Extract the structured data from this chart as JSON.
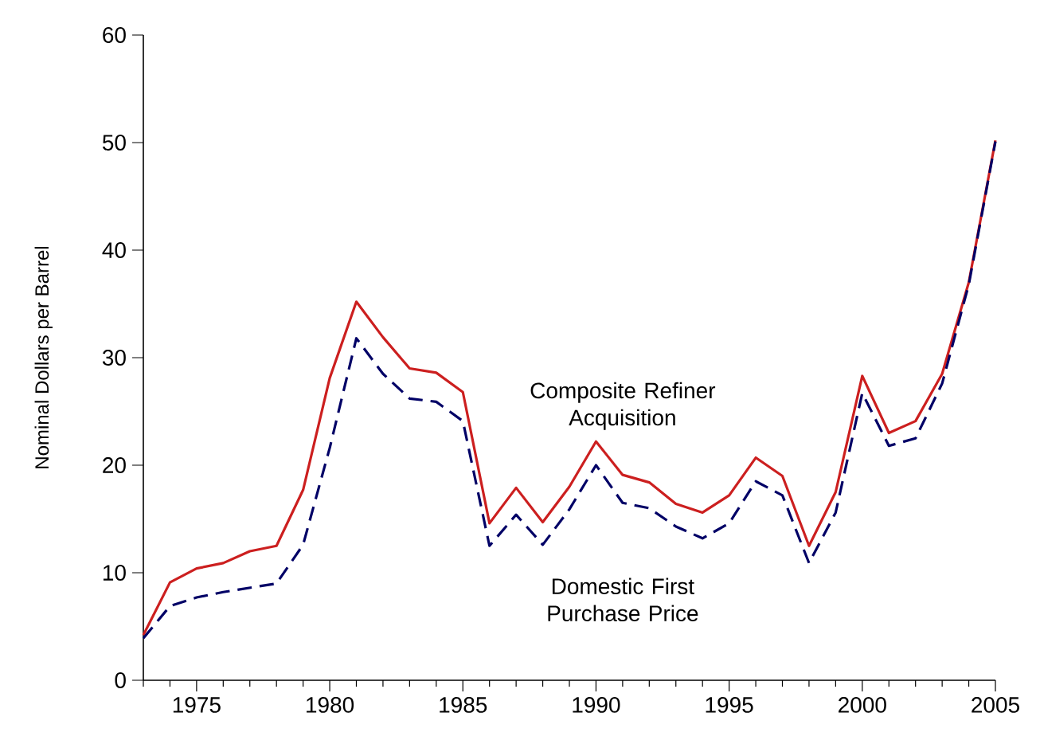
{
  "chart_data": {
    "type": "line",
    "ylabel": "Nominal Dollars per Barrel",
    "x": [
      1973,
      1974,
      1975,
      1976,
      1977,
      1978,
      1979,
      1980,
      1981,
      1982,
      1983,
      1984,
      1985,
      1986,
      1987,
      1988,
      1989,
      1990,
      1991,
      1992,
      1993,
      1994,
      1995,
      1996,
      1997,
      1998,
      1999,
      2000,
      2001,
      2002,
      2003,
      2004,
      2005
    ],
    "series": [
      {
        "name": "Composite Refiner Acquisition",
        "color": "#cc1f1f",
        "line_style": "solid",
        "values": [
          4.2,
          9.1,
          10.4,
          10.9,
          12.0,
          12.5,
          17.7,
          28.1,
          35.2,
          31.9,
          29.0,
          28.6,
          26.8,
          14.6,
          17.9,
          14.7,
          18.0,
          22.2,
          19.1,
          18.4,
          16.4,
          15.6,
          17.2,
          20.7,
          19.0,
          12.5,
          17.5,
          28.3,
          23.0,
          24.1,
          28.5,
          37.0,
          50.2
        ]
      },
      {
        "name": "Domestic First Purchase Price",
        "color": "#000066",
        "line_style": "dashed",
        "values": [
          3.9,
          6.9,
          7.7,
          8.2,
          8.6,
          9.0,
          12.6,
          21.6,
          31.8,
          28.5,
          26.2,
          25.9,
          24.1,
          12.5,
          15.4,
          12.6,
          15.9,
          20.0,
          16.5,
          16.0,
          14.3,
          13.2,
          14.6,
          18.5,
          17.2,
          10.9,
          15.6,
          26.7,
          21.8,
          22.5,
          27.6,
          36.8,
          50.1
        ]
      }
    ],
    "xlim": [
      1973,
      2005
    ],
    "ylim": [
      0,
      60
    ],
    "xticks": [
      {
        "value": 1973,
        "label": null
      },
      {
        "value": 1974,
        "label": null
      },
      1975,
      {
        "value": 1976,
        "label": null
      },
      {
        "value": 1977,
        "label": null
      },
      {
        "value": 1978,
        "label": null
      },
      {
        "value": 1979,
        "label": null
      },
      1980,
      {
        "value": 1981,
        "label": null
      },
      {
        "value": 1982,
        "label": null
      },
      {
        "value": 1983,
        "label": null
      },
      {
        "value": 1984,
        "label": null
      },
      1985,
      {
        "value": 1986,
        "label": null
      },
      {
        "value": 1987,
        "label": null
      },
      {
        "value": 1988,
        "label": null
      },
      {
        "value": 1989,
        "label": null
      },
      1990,
      {
        "value": 1991,
        "label": null
      },
      {
        "value": 1992,
        "label": null
      },
      {
        "value": 1993,
        "label": null
      },
      {
        "value": 1994,
        "label": null
      },
      1995,
      {
        "value": 1996,
        "label": null
      },
      {
        "value": 1997,
        "label": null
      },
      {
        "value": 1998,
        "label": null
      },
      {
        "value": 1999,
        "label": null
      },
      2000,
      {
        "value": 2001,
        "label": null
      },
      {
        "value": 2002,
        "label": null
      },
      {
        "value": 2003,
        "label": null
      },
      {
        "value": 2004,
        "label": null
      },
      2005
    ],
    "yticks": [
      0,
      10,
      20,
      30,
      40,
      50,
      60
    ],
    "grid": false,
    "legend": false,
    "marker": "none"
  }
}
